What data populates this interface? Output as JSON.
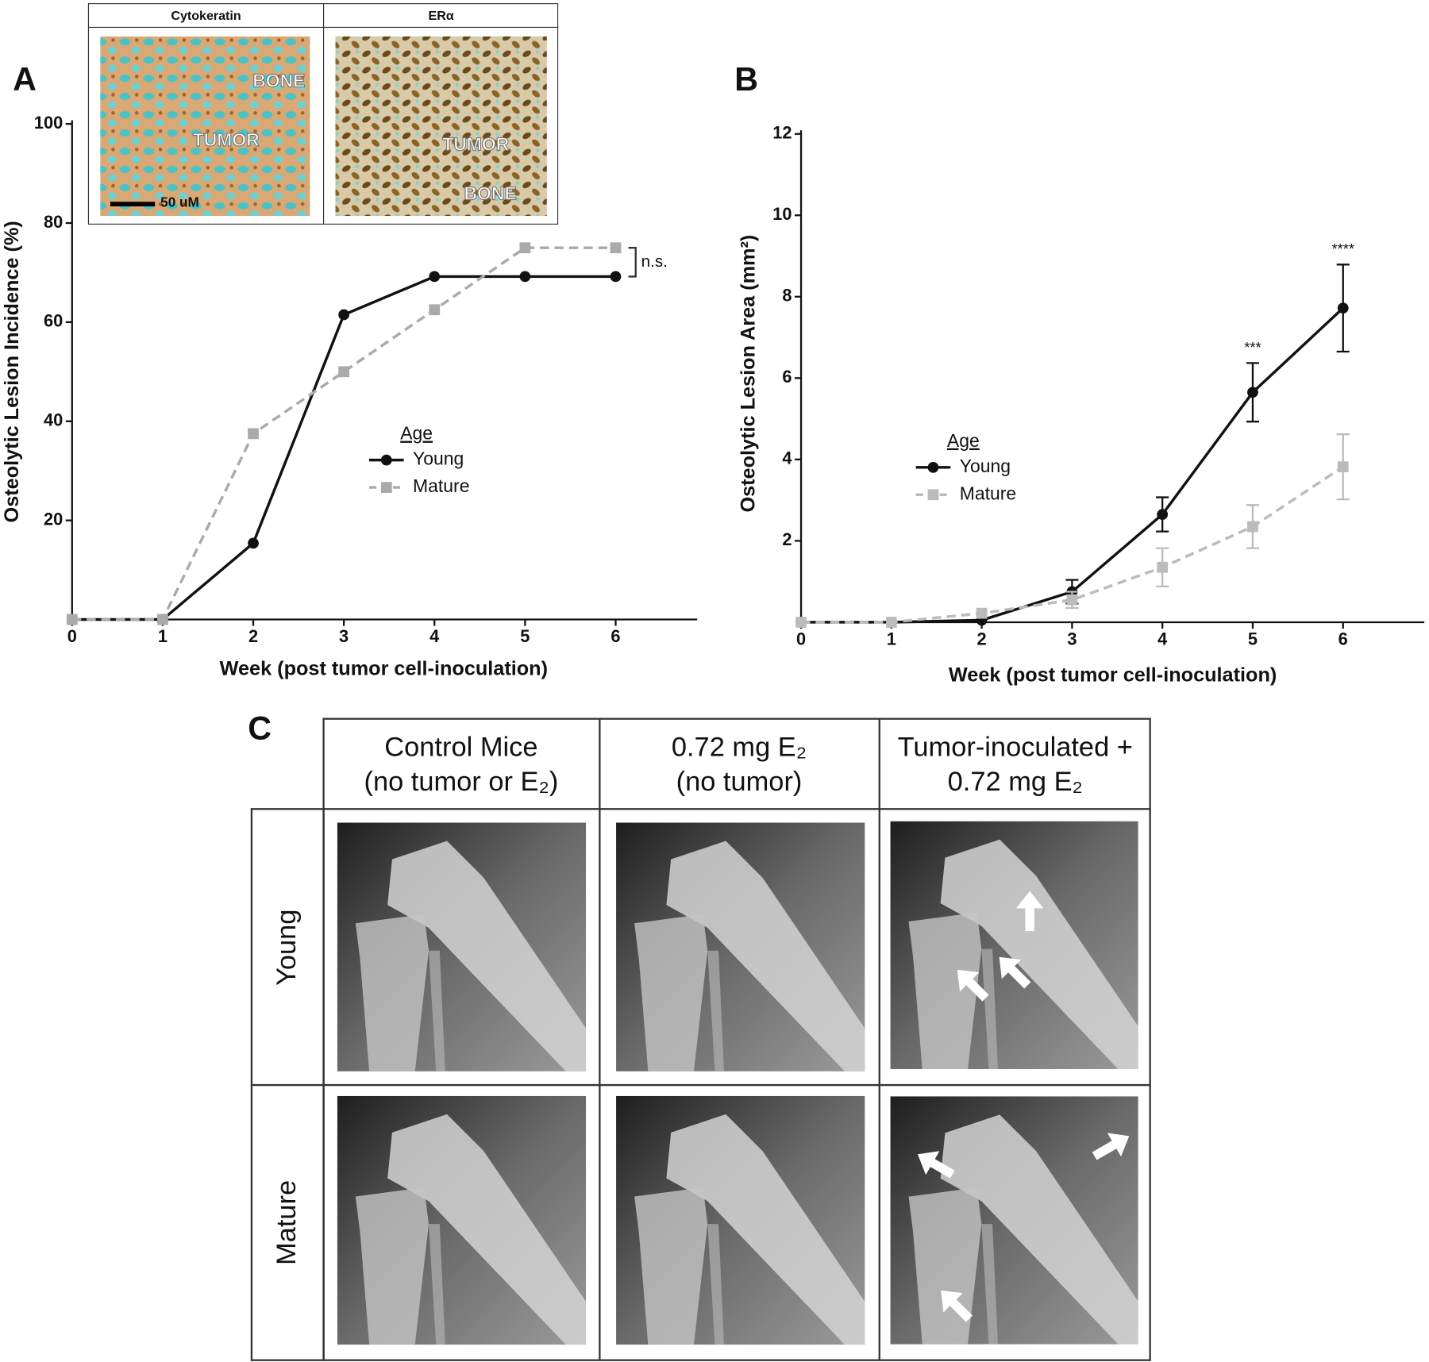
{
  "panel_labels": [
    "A",
    "B",
    "C"
  ],
  "inset": {
    "headers": [
      "Cytokeratin",
      "ERα"
    ],
    "left_labels": [
      "BONE",
      "TUMOR"
    ],
    "right_labels": [
      "TUMOR",
      "BONE"
    ],
    "scale_bar": "50 uM"
  },
  "chart_data": [
    {
      "type": "line",
      "x_label": "Week (post tumor cell-inoculation)",
      "y_label": "Osteolytic Lesion Incidence (%)",
      "x": [
        0,
        1,
        2,
        3,
        4,
        5,
        6
      ],
      "xlim": [
        0,
        6.9
      ],
      "xticks": [
        0,
        1,
        2,
        3,
        4,
        5,
        6
      ],
      "ylim": [
        0,
        100
      ],
      "yticks": [
        20,
        40,
        60,
        80,
        100
      ],
      "legend_title": "Age",
      "series": [
        {
          "name": "Young",
          "color": "#111111",
          "style": "solid",
          "marker": "circle",
          "values": [
            0,
            0,
            15.4,
            61.5,
            69.2,
            69.2,
            69.2
          ]
        },
        {
          "name": "Mature",
          "color": "#aaaaaa",
          "style": "dashed",
          "marker": "square",
          "values": [
            0,
            0,
            37.5,
            50,
            62.5,
            75,
            75
          ]
        }
      ],
      "annotation": "n.s."
    },
    {
      "type": "line",
      "x_label": "Week (post tumor cell-inoculation)",
      "y_label": "Osteolytic Lesion Area (mm²)",
      "x": [
        0,
        1,
        2,
        3,
        4,
        5,
        6
      ],
      "xlim": [
        0,
        6.9
      ],
      "xticks": [
        0,
        1,
        2,
        3,
        4,
        5,
        6
      ],
      "ylim": [
        0,
        12
      ],
      "yticks": [
        2,
        4,
        6,
        8,
        10,
        12
      ],
      "legend_title": "Age",
      "series": [
        {
          "name": "Young",
          "color": "#111111",
          "style": "solid",
          "marker": "circle",
          "values": [
            0,
            0,
            0.05,
            0.75,
            2.65,
            5.65,
            7.72
          ],
          "errors": [
            null,
            null,
            null,
            0.29,
            0.42,
            0.72,
            1.07
          ]
        },
        {
          "name": "Mature",
          "color": "#bbbbbb",
          "style": "dashed",
          "marker": "square",
          "values": [
            0,
            0,
            0.22,
            0.55,
            1.35,
            2.35,
            3.82
          ],
          "errors": [
            null,
            null,
            null,
            0.2,
            0.47,
            0.53,
            0.8
          ]
        }
      ],
      "significance": [
        null,
        null,
        null,
        null,
        null,
        "***",
        "****"
      ]
    }
  ],
  "panel_c": {
    "columns": [
      [
        "Control Mice",
        "(no tumor or E₂)"
      ],
      [
        "0.72 mg E₂",
        "(no tumor)"
      ],
      [
        "Tumor-inoculated +",
        "0.72 mg E₂"
      ]
    ],
    "rows": [
      "Young",
      "Mature"
    ]
  }
}
